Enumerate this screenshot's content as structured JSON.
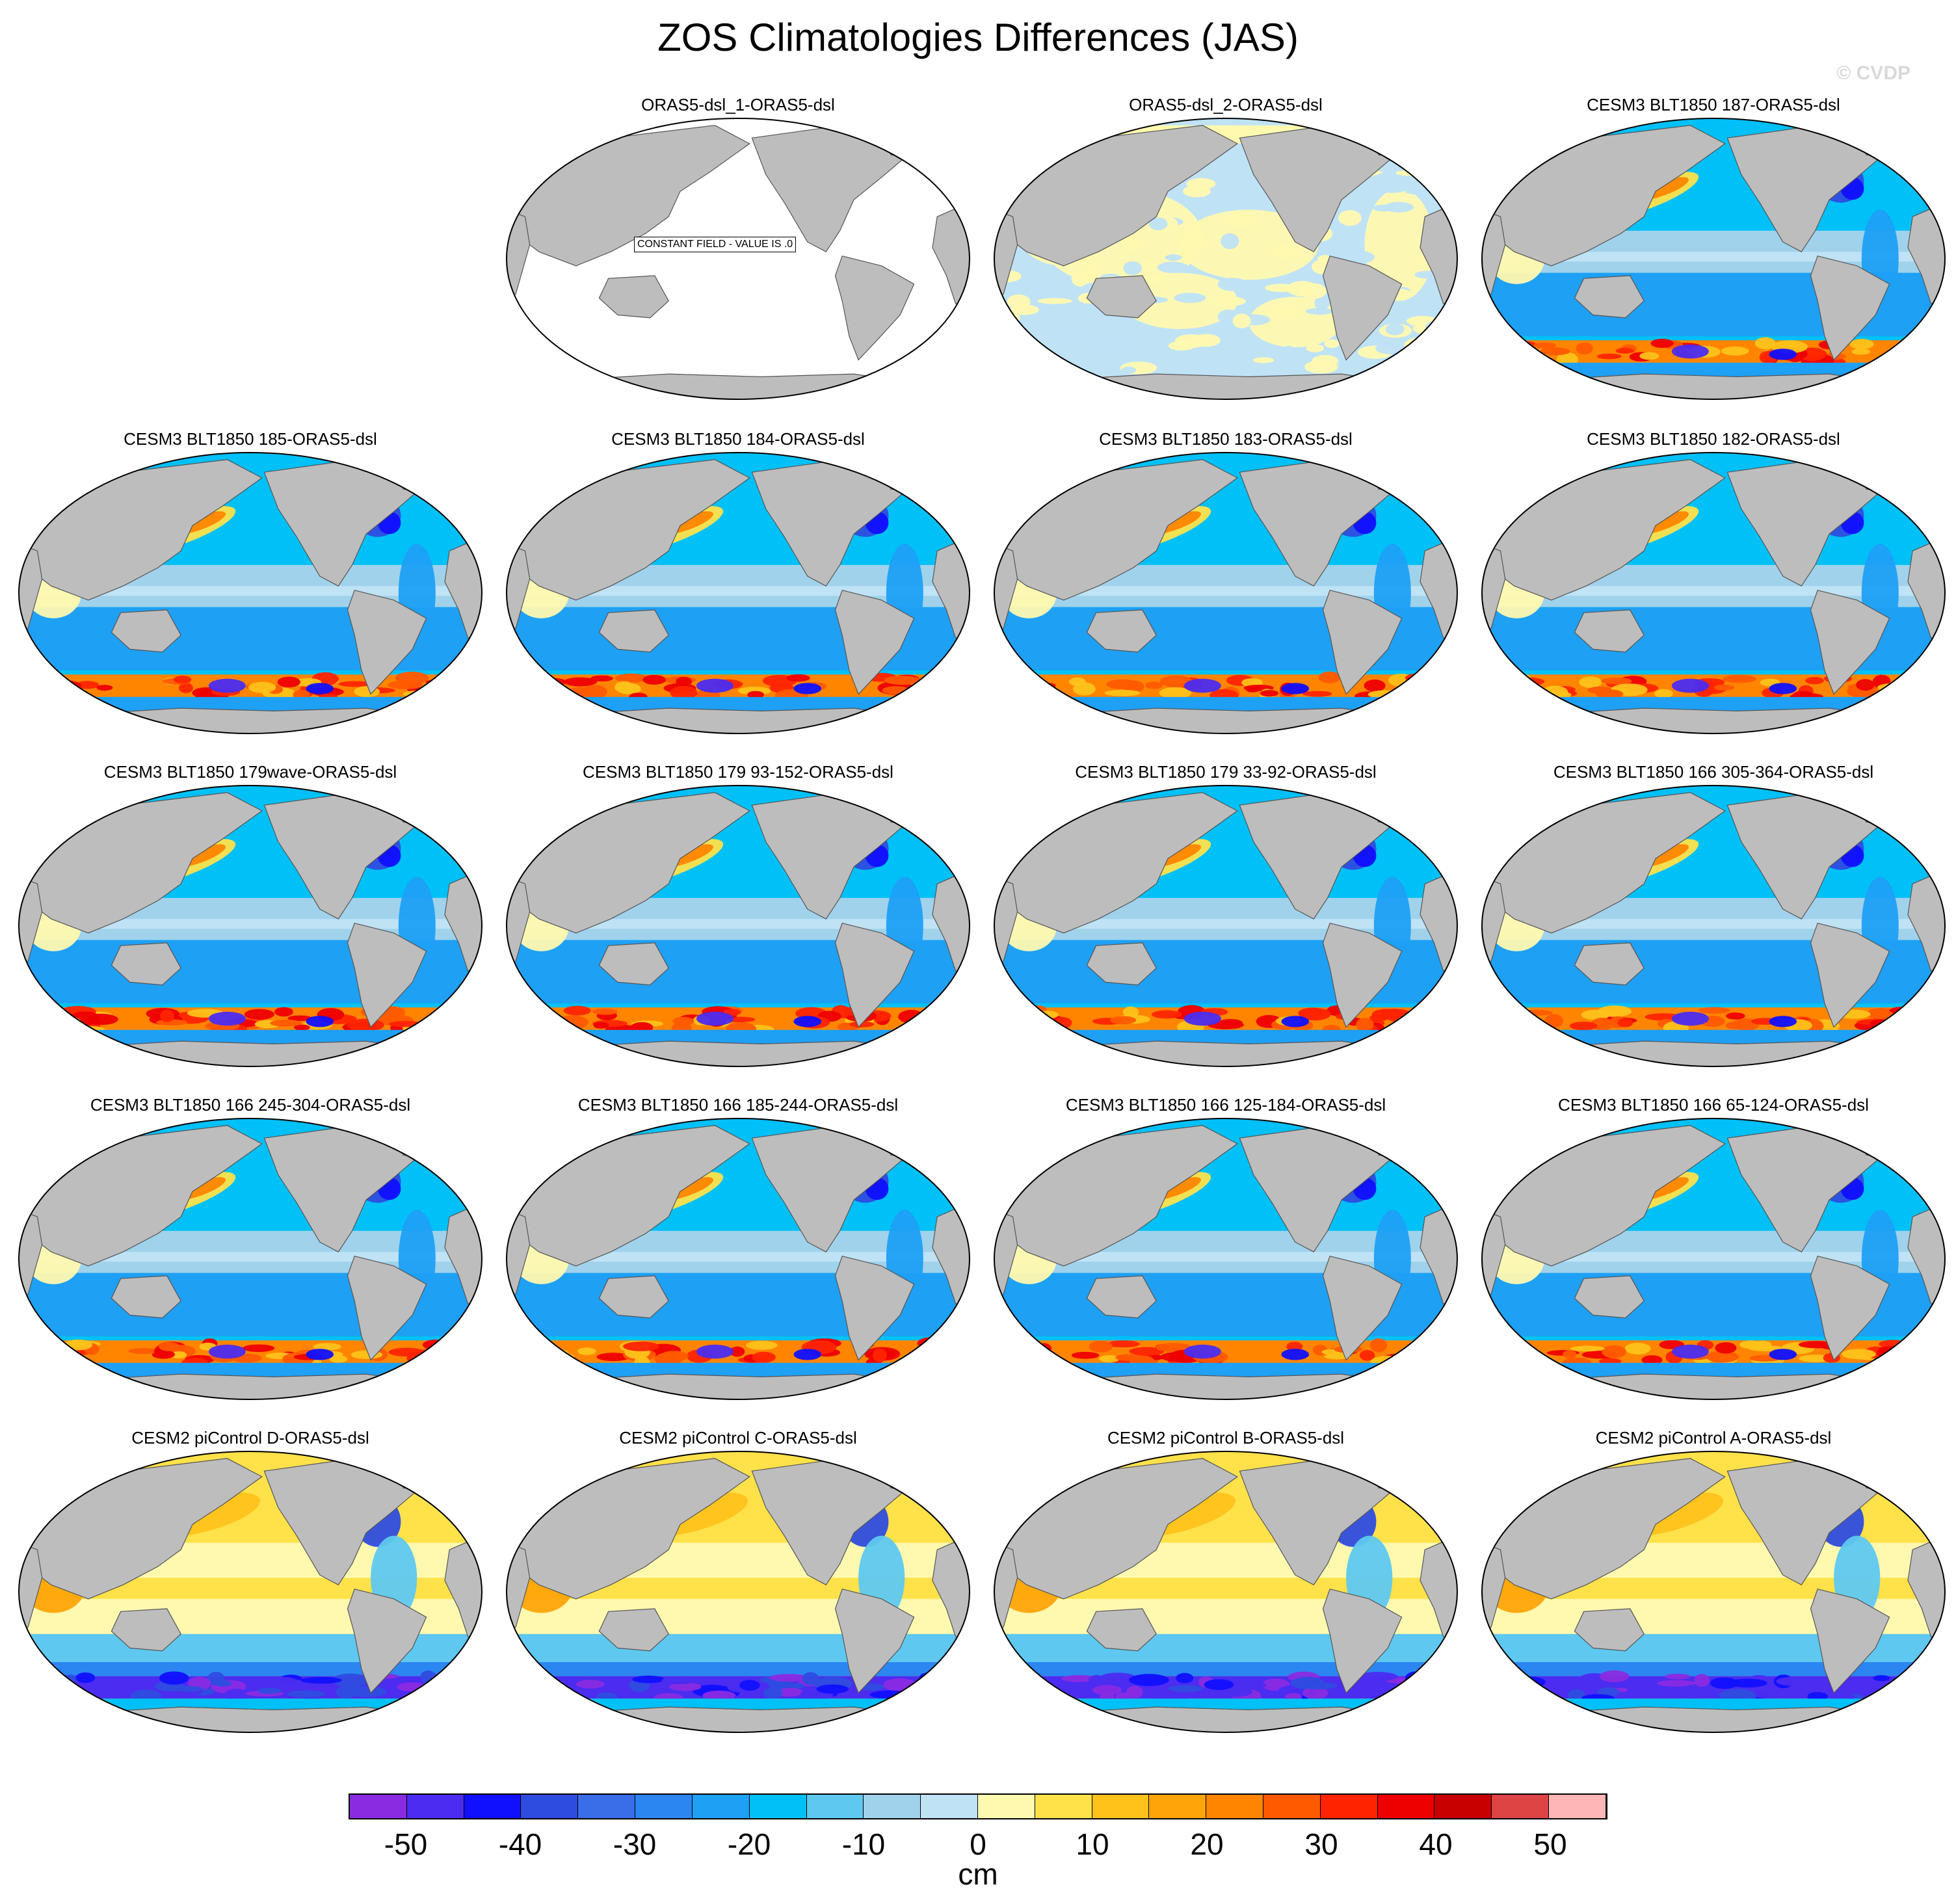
{
  "title": "ZOS Climatologies Differences (JAS)",
  "watermark": "© CVDP",
  "colors": {
    "land": "#bdbdbd",
    "ocean_zero": "#ffffff",
    "coast": "#555555"
  },
  "panels": [
    {
      "title": "ORAS5-dsl_1-ORAS5-dsl",
      "style": "constant",
      "note": "CONSTANT FIELD - VALUE IS .0"
    },
    {
      "title": "ORAS5-dsl_2-ORAS5-dsl",
      "style": "small"
    },
    {
      "title": "CESM3 BLT1850 187-ORAS5-dsl",
      "style": "cesm3"
    },
    {
      "title": "CESM3 BLT1850 185-ORAS5-dsl",
      "style": "cesm3"
    },
    {
      "title": "CESM3 BLT1850 184-ORAS5-dsl",
      "style": "cesm3"
    },
    {
      "title": "CESM3 BLT1850 183-ORAS5-dsl",
      "style": "cesm3"
    },
    {
      "title": "CESM3 BLT1850 182-ORAS5-dsl",
      "style": "cesm3"
    },
    {
      "title": "CESM3 BLT1850 179wave-ORAS5-dsl",
      "style": "cesm3"
    },
    {
      "title": "CESM3 BLT1850 179 93-152-ORAS5-dsl",
      "style": "cesm3"
    },
    {
      "title": "CESM3 BLT1850 179 33-92-ORAS5-dsl",
      "style": "cesm3"
    },
    {
      "title": "CESM3 BLT1850 166 305-364-ORAS5-dsl",
      "style": "cesm3"
    },
    {
      "title": "CESM3 BLT1850 166 245-304-ORAS5-dsl",
      "style": "cesm3"
    },
    {
      "title": "CESM3 BLT1850 166 185-244-ORAS5-dsl",
      "style": "cesm3"
    },
    {
      "title": "CESM3 BLT1850 166 125-184-ORAS5-dsl",
      "style": "cesm3"
    },
    {
      "title": "CESM3 BLT1850 166 65-124-ORAS5-dsl",
      "style": "cesm3"
    },
    {
      "title": "CESM2 piControl D-ORAS5-dsl",
      "style": "cesm2"
    },
    {
      "title": "CESM2 piControl C-ORAS5-dsl",
      "style": "cesm2"
    },
    {
      "title": "CESM2 piControl B-ORAS5-dsl",
      "style": "cesm2"
    },
    {
      "title": "CESM2 piControl A-ORAS5-dsl",
      "style": "cesm2"
    }
  ],
  "colorbar": {
    "unit": "cm",
    "colors": [
      "#8a2be2",
      "#4b2cf0",
      "#1010ff",
      "#2e4ce0",
      "#3a6ee8",
      "#2b86f2",
      "#1ea0f5",
      "#00c0f8",
      "#5ec8f0",
      "#a0d2ec",
      "#bfe2f5",
      "#fff9b0",
      "#ffe14a",
      "#ffc21a",
      "#ffa50a",
      "#ff8500",
      "#ff5a00",
      "#ff2400",
      "#ee0000",
      "#c80000",
      "#dd4444",
      "#ffb6b6"
    ],
    "tick_labels": [
      "-50",
      "-40",
      "-30",
      "-20",
      "-10",
      "0",
      "10",
      "20",
      "30",
      "40",
      "50"
    ]
  }
}
